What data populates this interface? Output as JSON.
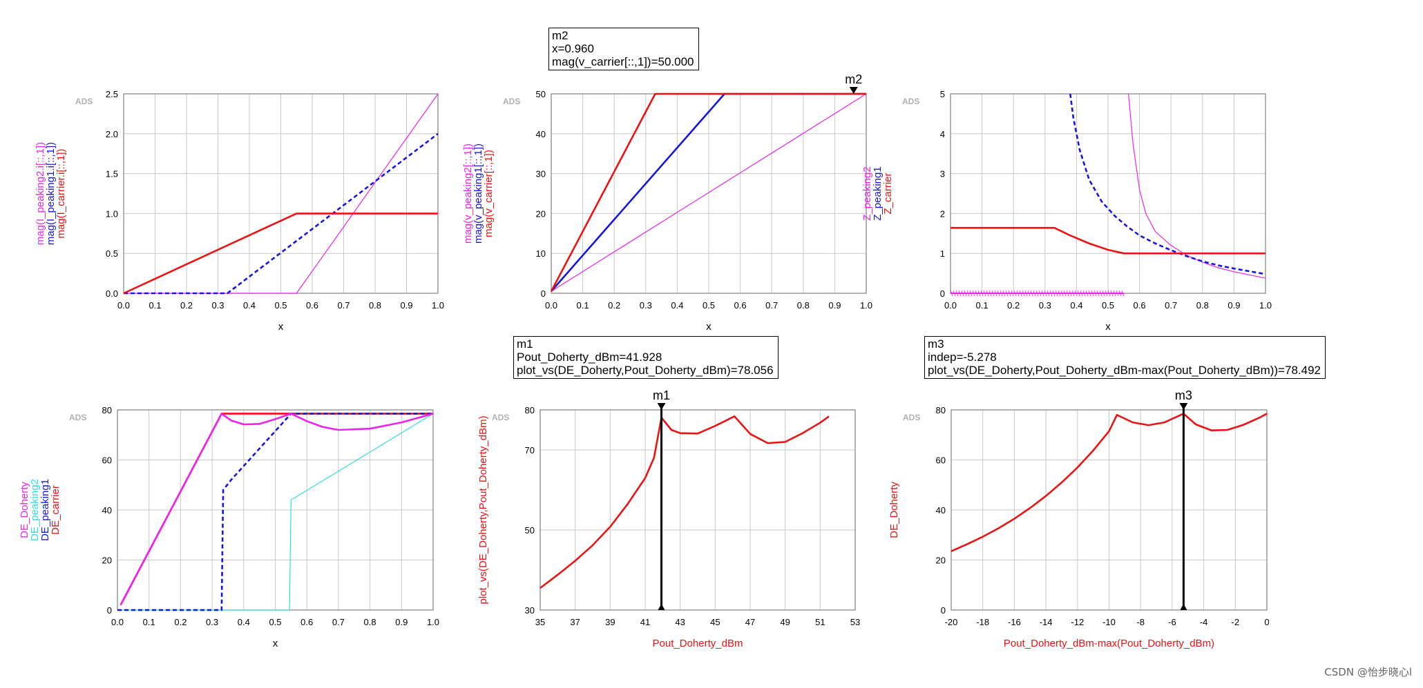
{
  "colors": {
    "red": "#ee1111",
    "blue": "#1515dd",
    "magenta": "#ee22ee",
    "cyan": "#33dddd",
    "grid": "#c9c9c9",
    "axis": "#808080"
  },
  "watermark": "CSDN @怡步晓心l",
  "markers": {
    "m2": {
      "title": "m2",
      "line1": "x=0.960",
      "line2": "mag(v_carrier[::,1])=50.000"
    },
    "m1": {
      "title": "m1",
      "line1": "Pout_Doherty_dBm=41.928",
      "line2": "plot_vs(DE_Doherty,Pout_Doherty_dBm)=78.056"
    },
    "m3": {
      "title": "m3",
      "line1": "indep=-5.278",
      "line2": "plot_vs(DE_Doherty,Pout_Doherty_dBm-max(Pout_Doherty_dBm))=78.492"
    }
  },
  "chart_data": [
    {
      "id": "current",
      "type": "line",
      "ads_label": "ADS",
      "xlabel": "x",
      "xlim": [
        0,
        1
      ],
      "ylim": [
        0,
        2.5
      ],
      "xticks": [
        "0.0",
        "0.1",
        "0.2",
        "0.3",
        "0.4",
        "0.5",
        "0.6",
        "0.7",
        "0.8",
        "0.9",
        "1.0"
      ],
      "yticks": [
        "0.0",
        "0.5",
        "1.0",
        "1.5",
        "2.0",
        "2.5"
      ],
      "ylabels": [
        {
          "text": "mag(I_peaking2.i[::,1])",
          "color": "magenta"
        },
        {
          "text": "mag(I_peaking1.i[::,1])",
          "color": "blue"
        },
        {
          "text": "mag(I_carrier.i[::,1])",
          "color": "red"
        }
      ],
      "series": [
        {
          "name": "mag(I_peaking2.i[::,1])",
          "color": "magenta",
          "dash": false,
          "width": 1.2,
          "points": [
            [
              0,
              0
            ],
            [
              0.55,
              0
            ],
            [
              1.0,
              2.5
            ]
          ]
        },
        {
          "name": "mag(I_peaking1.i[::,1])",
          "color": "blue",
          "dash": true,
          "width": 2.6,
          "points": [
            [
              0,
              0
            ],
            [
              0.33,
              0
            ],
            [
              1.0,
              2.0
            ]
          ]
        },
        {
          "name": "mag(I_carrier.i[::,1])",
          "color": "red",
          "dash": false,
          "width": 2.6,
          "points": [
            [
              0,
              0
            ],
            [
              0.55,
              1.0
            ],
            [
              1.0,
              1.0
            ]
          ]
        }
      ]
    },
    {
      "id": "voltage",
      "type": "line",
      "ads_label": "ADS",
      "xlabel": "x",
      "xlim": [
        0,
        1
      ],
      "ylim": [
        0,
        50
      ],
      "xticks": [
        "0.0",
        "0.1",
        "0.2",
        "0.3",
        "0.4",
        "0.5",
        "0.6",
        "0.7",
        "0.8",
        "0.9",
        "1.0"
      ],
      "yticks": [
        "0",
        "10",
        "20",
        "30",
        "40",
        "50"
      ],
      "ylabels": [
        {
          "text": "mag(v_peaking2[::,1])",
          "color": "magenta"
        },
        {
          "text": "mag(v_peaking1[::,1])",
          "color": "blue"
        },
        {
          "text": "mag(v_carrier[::,1])",
          "color": "red"
        }
      ],
      "series": [
        {
          "name": "mag(v_peaking2[::,1])",
          "color": "magenta",
          "dash": false,
          "width": 1.2,
          "points": [
            [
              0,
              0.5
            ],
            [
              1.0,
              50
            ]
          ]
        },
        {
          "name": "mag(v_peaking1[::,1])",
          "color": "blue",
          "dash": false,
          "width": 2.6,
          "points": [
            [
              0,
              0.5
            ],
            [
              0.55,
              50
            ],
            [
              1.0,
              50
            ]
          ]
        },
        {
          "name": "mag(v_carrier[::,1])",
          "color": "red",
          "dash": false,
          "width": 2.6,
          "points": [
            [
              0,
              0.5
            ],
            [
              0.33,
              50
            ],
            [
              1.0,
              50
            ]
          ]
        }
      ],
      "marker": {
        "name": "m2",
        "x": 0.96,
        "y": 50,
        "style": "top"
      }
    },
    {
      "id": "impedance",
      "type": "line",
      "ads_label": "ADS",
      "xlabel": "x",
      "xlim": [
        0,
        1
      ],
      "ylim": [
        0,
        5
      ],
      "xticks": [
        "0.0",
        "0.1",
        "0.2",
        "0.3",
        "0.4",
        "0.5",
        "0.6",
        "0.7",
        "0.8",
        "0.9",
        "1.0"
      ],
      "yticks": [
        "0",
        "1",
        "2",
        "3",
        "4",
        "5"
      ],
      "ylabels": [
        {
          "text": "Z_peaking2",
          "color": "magenta"
        },
        {
          "text": "Z_peaking1",
          "color": "blue"
        },
        {
          "text": "Z_carrier",
          "color": "red"
        }
      ],
      "series": [
        {
          "name": "Z_peaking2",
          "color": "magenta",
          "dash": false,
          "width": 1.2,
          "points": [
            [
              0.565,
              5.0
            ],
            [
              0.58,
              3.7
            ],
            [
              0.6,
              2.6
            ],
            [
              0.62,
              2.0
            ],
            [
              0.65,
              1.55
            ],
            [
              0.7,
              1.2
            ],
            [
              0.75,
              0.95
            ],
            [
              0.8,
              0.78
            ],
            [
              0.85,
              0.64
            ],
            [
              0.9,
              0.54
            ],
            [
              0.95,
              0.46
            ],
            [
              1.0,
              0.38
            ]
          ]
        },
        {
          "name": "Z_peaking1",
          "color": "blue",
          "dash": true,
          "width": 2.6,
          "points": [
            [
              0.38,
              5.0
            ],
            [
              0.39,
              4.4
            ],
            [
              0.41,
              3.6
            ],
            [
              0.44,
              2.85
            ],
            [
              0.48,
              2.3
            ],
            [
              0.52,
              1.95
            ],
            [
              0.56,
              1.68
            ],
            [
              0.6,
              1.45
            ],
            [
              0.65,
              1.25
            ],
            [
              0.7,
              1.08
            ],
            [
              0.75,
              0.93
            ],
            [
              0.8,
              0.8
            ],
            [
              0.85,
              0.7
            ],
            [
              0.9,
              0.62
            ],
            [
              0.95,
              0.55
            ],
            [
              1.0,
              0.48
            ]
          ]
        },
        {
          "name": "Z_carrier",
          "color": "red",
          "dash": false,
          "width": 2.6,
          "points": [
            [
              0,
              1.64
            ],
            [
              0.33,
              1.64
            ],
            [
              0.38,
              1.45
            ],
            [
              0.44,
              1.25
            ],
            [
              0.5,
              1.09
            ],
            [
              0.55,
              1.0
            ],
            [
              1.0,
              1.0
            ]
          ]
        }
      ],
      "hatched_baseline": {
        "from": 0,
        "to": 0.55,
        "y": 0,
        "color": "magenta"
      }
    },
    {
      "id": "efficiency",
      "type": "line",
      "ads_label": "ADS",
      "xlabel": "x",
      "xlim": [
        0,
        1
      ],
      "ylim": [
        0,
        80
      ],
      "xticks": [
        "0.0",
        "0.1",
        "0.2",
        "0.3",
        "0.4",
        "0.5",
        "0.6",
        "0.7",
        "0.8",
        "0.9",
        "1.0"
      ],
      "yticks": [
        "0",
        "20",
        "40",
        "60",
        "80"
      ],
      "ylabels": [
        {
          "text": "DE_Doherty",
          "color": "magenta"
        },
        {
          "text": "DE_peaking2",
          "color": "cyan"
        },
        {
          "text": "DE_peaking1",
          "color": "blue"
        },
        {
          "text": "DE_carrier",
          "color": "red"
        }
      ],
      "series": [
        {
          "name": "DE_carrier",
          "color": "red",
          "dash": false,
          "width": 2.6,
          "points": [
            [
              0.01,
              2
            ],
            [
              0.33,
              78.5
            ],
            [
              1.0,
              78.5
            ]
          ]
        },
        {
          "name": "DE_peaking2",
          "color": "cyan",
          "dash": false,
          "width": 1.2,
          "points": [
            [
              0,
              0
            ],
            [
              0.545,
              0
            ],
            [
              0.55,
              44
            ],
            [
              1.0,
              78.5
            ]
          ]
        },
        {
          "name": "DE_peaking1",
          "color": "blue",
          "dash": true,
          "width": 2.6,
          "points": [
            [
              0,
              0
            ],
            [
              0.33,
              0
            ],
            [
              0.335,
              48
            ],
            [
              0.36,
              52
            ],
            [
              0.55,
              78.5
            ],
            [
              1.0,
              78.5
            ]
          ]
        },
        {
          "name": "DE_Doherty",
          "color": "magenta",
          "dash": false,
          "width": 2.6,
          "points": [
            [
              0.01,
              2
            ],
            [
              0.33,
              78.5
            ],
            [
              0.36,
              75.8
            ],
            [
              0.4,
              74.2
            ],
            [
              0.45,
              74.4
            ],
            [
              0.5,
              76.3
            ],
            [
              0.55,
              78.5
            ],
            [
              0.6,
              75.5
            ],
            [
              0.65,
              73.2
            ],
            [
              0.7,
              72.0
            ],
            [
              0.8,
              72.5
            ],
            [
              0.9,
              75.0
            ],
            [
              1.0,
              78.5
            ]
          ]
        }
      ]
    },
    {
      "id": "de_vs_pout",
      "type": "line",
      "ads_label": "ADS",
      "xlabel": "Pout_Doherty_dBm",
      "xlabel_color": "red",
      "xlim": [
        35,
        53
      ],
      "ylim": [
        30,
        80
      ],
      "xticks": [
        "35",
        "37",
        "39",
        "41",
        "43",
        "45",
        "47",
        "49",
        "51",
        "53"
      ],
      "yticks": [
        "30",
        "50",
        "70",
        "80"
      ],
      "ylabels": [
        {
          "text": "plot_vs(DE_Doherty,Pout_Doherty_dBm)",
          "color": "red"
        }
      ],
      "series": [
        {
          "name": "plot_vs(DE_Doherty,Pout_Doherty_dBm)",
          "color": "red",
          "dash": false,
          "width": 2.6,
          "points": [
            [
              35,
              35.5
            ],
            [
              36,
              38.8
            ],
            [
              37,
              42.3
            ],
            [
              38,
              46.2
            ],
            [
              39,
              50.8
            ],
            [
              40,
              56.5
            ],
            [
              41,
              63.0
            ],
            [
              41.5,
              68.0
            ],
            [
              41.93,
              78.06
            ],
            [
              42.5,
              75.0
            ],
            [
              43,
              74.2
            ],
            [
              44,
              74.1
            ],
            [
              45,
              76.0
            ],
            [
              46.1,
              78.4
            ],
            [
              47,
              74.0
            ],
            [
              48,
              71.7
            ],
            [
              49,
              72.0
            ],
            [
              50,
              74.2
            ],
            [
              51,
              76.8
            ],
            [
              51.5,
              78.4
            ]
          ]
        }
      ],
      "marker": {
        "name": "m1",
        "x": 41.928,
        "y": 78.056,
        "style": "vline"
      }
    },
    {
      "id": "de_vs_backoff",
      "type": "line",
      "ads_label": "ADS",
      "xlabel": "Pout_Doherty_dBm-max(Pout_Doherty_dBm)",
      "xlabel_color": "red",
      "xlim": [
        -20,
        0
      ],
      "ylim": [
        0,
        80
      ],
      "xticks": [
        "-20",
        "-18",
        "-16",
        "-14",
        "-12",
        "-10",
        "-8",
        "-6",
        "-4",
        "-2",
        "0"
      ],
      "yticks": [
        "0",
        "20",
        "40",
        "60",
        "80"
      ],
      "ylabels": [
        {
          "text": "DE_Doherty",
          "color": "red"
        }
      ],
      "series": [
        {
          "name": "DE_Doherty",
          "color": "red",
          "dash": false,
          "width": 2.6,
          "points": [
            [
              -20,
              23.5
            ],
            [
              -19,
              26.3
            ],
            [
              -18,
              29.3
            ],
            [
              -17,
              32.7
            ],
            [
              -16,
              36.5
            ],
            [
              -15,
              40.8
            ],
            [
              -14,
              45.6
            ],
            [
              -13,
              51.0
            ],
            [
              -12,
              57.0
            ],
            [
              -11,
              63.8
            ],
            [
              -10,
              71.5
            ],
            [
              -9.5,
              78.0
            ],
            [
              -8.5,
              75.0
            ],
            [
              -7.5,
              73.9
            ],
            [
              -6.5,
              75.0
            ],
            [
              -5.28,
              78.49
            ],
            [
              -4.5,
              74.2
            ],
            [
              -3.5,
              71.8
            ],
            [
              -2.5,
              72.0
            ],
            [
              -1.5,
              74.0
            ],
            [
              -0.5,
              76.8
            ],
            [
              0,
              78.5
            ]
          ]
        }
      ],
      "marker": {
        "name": "m3",
        "x": -5.278,
        "y": 78.492,
        "style": "vline"
      }
    }
  ]
}
